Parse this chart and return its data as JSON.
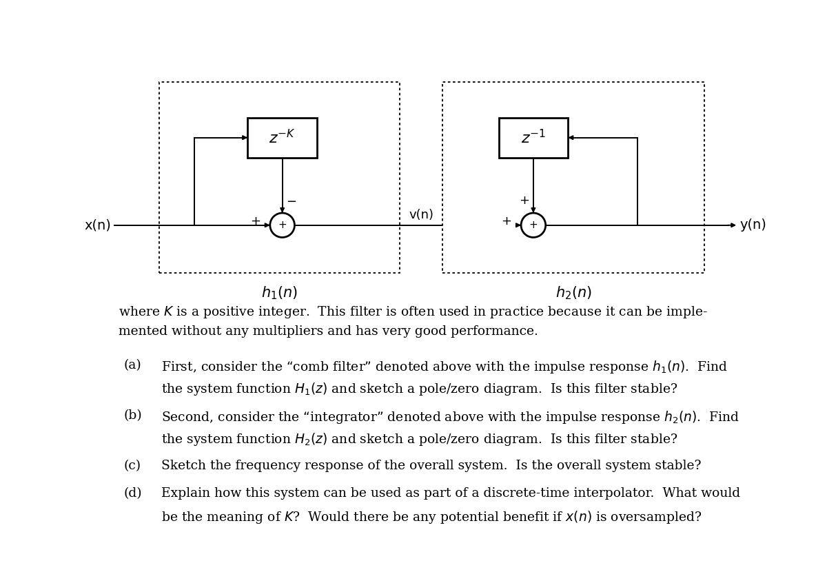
{
  "bg_color": "#ffffff",
  "box1_label": "$z^{-K}$",
  "box2_label": "$z^{-1}$",
  "input_label": "x(n)",
  "output_label": "y(n)",
  "middle_label": "v(n)",
  "h1_label": "$h_1(n)$",
  "h2_label": "$h_2(n)$",
  "para_text": "where $K$ is a positive integer.  This filter is often used in practice because it can be imple-\nmented without any multipliers and has very good performance.",
  "items": [
    {
      "label": "(a)",
      "line1": "First, consider the “comb filter” denoted above with the impulse response $h_1(n)$.  Find",
      "line2": "the system function $H_1(z)$ and sketch a pole/zero diagram.  Is this filter stable?"
    },
    {
      "label": "(b)",
      "line1": "Second, consider the “integrator” denoted above with the impulse response $h_2(n)$.  Find",
      "line2": "the system function $H_2(z)$ and sketch a pole/zero diagram.  Is this filter stable?"
    },
    {
      "label": "(c)",
      "line1": "Sketch the frequency response of the overall system.  Is the overall system stable?",
      "line2": null
    },
    {
      "label": "(d)",
      "line1": "Explain how this system can be used as part of a discrete-time interpolator.  What would",
      "line2": "be the meaning of $K$?  Would there be any potential benefit if $x(n)$ is oversampled?"
    }
  ]
}
